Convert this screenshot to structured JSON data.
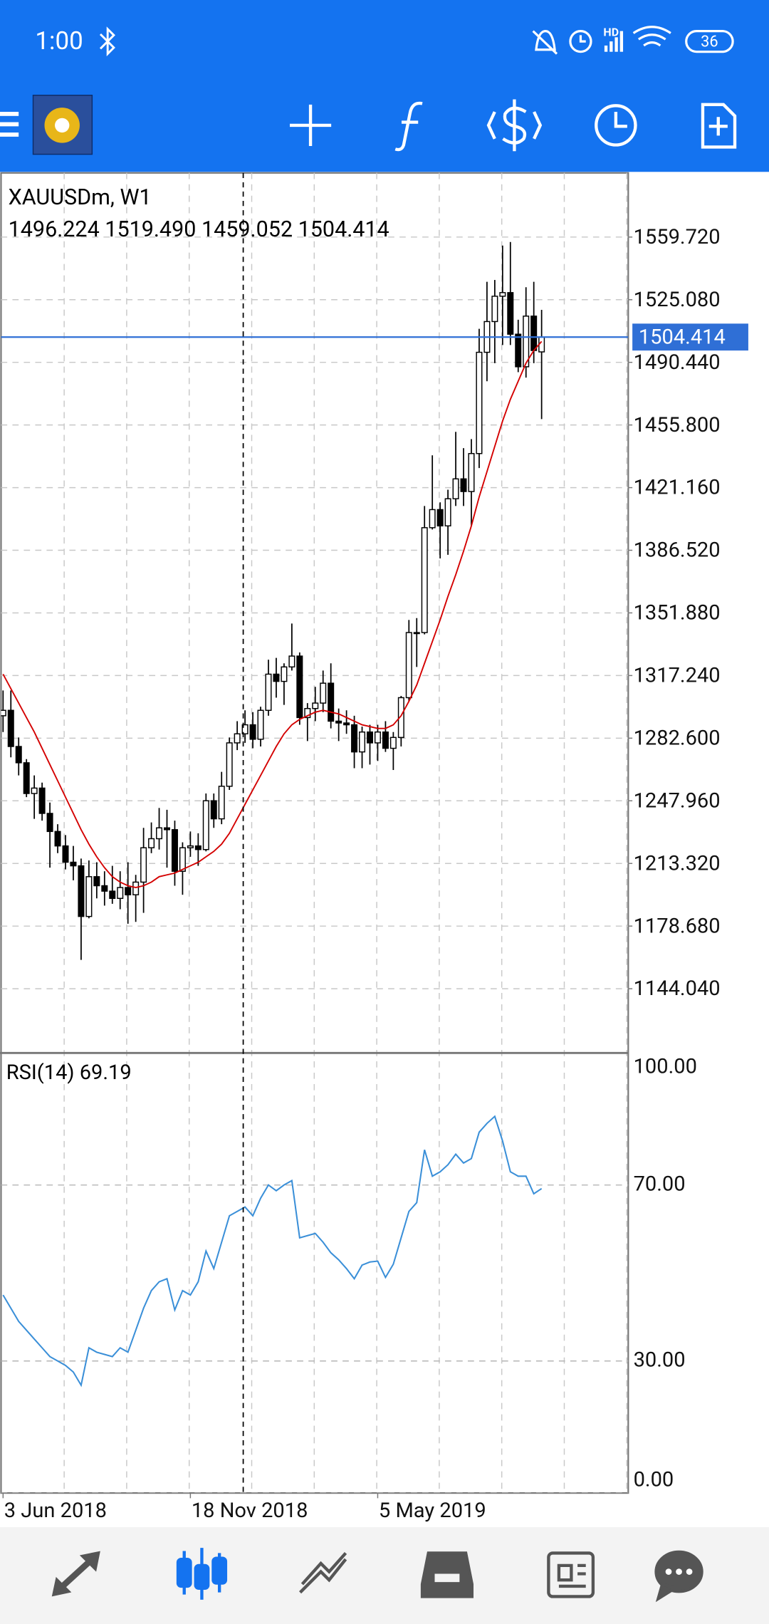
{
  "status_bar": {
    "time": "1:00",
    "network": "HD",
    "battery": "36"
  },
  "chart_data": {
    "type": "candlestick",
    "title": "XAUUSDm, W1",
    "info": "1496.224 1519.490 1459.052 1504.414",
    "open": [
      1295,
      1298,
      1278,
      1269,
      1252,
      1255,
      1241,
      1231,
      1223,
      1214,
      1212,
      1184,
      1206,
      1201,
      1198,
      1194,
      1200,
      1196,
      1203,
      1222,
      1227,
      1233,
      1232,
      1209,
      1222,
      1223,
      1221,
      1248,
      1238,
      1256,
      1280,
      1285,
      1290,
      1282,
      1298,
      1318,
      1314,
      1322,
      1328,
      1294,
      1299,
      1302,
      1313,
      1292,
      1291,
      1290,
      1275,
      1286,
      1280,
      1286,
      1277,
      1283,
      1305,
      1341,
      1341,
      1399,
      1409,
      1400,
      1415,
      1426,
      1419,
      1440,
      1496,
      1513,
      1527,
      1529,
      1506,
      1488,
      1516,
      1496.224
    ],
    "high": [
      1309,
      1309,
      1283,
      1271,
      1262,
      1258,
      1247,
      1235,
      1229,
      1223,
      1216,
      1215,
      1214,
      1209,
      1212,
      1209,
      1214,
      1207,
      1233,
      1236,
      1244,
      1243,
      1237,
      1225,
      1231,
      1230,
      1252,
      1252,
      1264,
      1283,
      1292,
      1298,
      1297,
      1300,
      1326,
      1327,
      1324,
      1346,
      1330,
      1302,
      1311,
      1320,
      1324,
      1299,
      1298,
      1295,
      1289,
      1290,
      1290,
      1292,
      1286,
      1306,
      1348,
      1349,
      1411,
      1439,
      1413,
      1420,
      1452,
      1443,
      1448,
      1509,
      1535,
      1536,
      1555,
      1557,
      1514,
      1532,
      1535,
      1519.49
    ],
    "low": [
      1286,
      1272,
      1262,
      1250,
      1238,
      1237,
      1211,
      1219,
      1210,
      1204,
      1160,
      1183,
      1194,
      1190,
      1191,
      1188,
      1180,
      1181,
      1186,
      1219,
      1221,
      1211,
      1201,
      1196,
      1217,
      1212,
      1220,
      1233,
      1235,
      1254,
      1276,
      1280,
      1277,
      1278,
      1295,
      1305,
      1301,
      1320,
      1290,
      1281,
      1292,
      1297,
      1288,
      1281,
      1285,
      1266,
      1266,
      1268,
      1270,
      1275,
      1265,
      1278,
      1303,
      1322,
      1340,
      1398,
      1382,
      1384,
      1411,
      1411,
      1400,
      1432,
      1480,
      1490,
      1500,
      1500,
      1485,
      1482,
      1490,
      1459.052
    ],
    "close": [
      1298,
      1278,
      1269,
      1252,
      1255,
      1241,
      1231,
      1223,
      1214,
      1212,
      1184,
      1206,
      1201,
      1198,
      1194,
      1200,
      1196,
      1203,
      1222,
      1227,
      1233,
      1232,
      1209,
      1222,
      1223,
      1221,
      1248,
      1238,
      1256,
      1280,
      1285,
      1290,
      1282,
      1298,
      1318,
      1314,
      1322,
      1328,
      1294,
      1299,
      1302,
      1313,
      1292,
      1291,
      1290,
      1275,
      1286,
      1280,
      1286,
      1277,
      1283,
      1305,
      1341,
      1341,
      1399,
      1409,
      1400,
      1415,
      1426,
      1419,
      1440,
      1496,
      1513,
      1527,
      1529,
      1506,
      1488,
      1516,
      1497,
      1504.414
    ],
    "up_color": "#ffffff",
    "down_color": "#000000",
    "ma": {
      "color": "#d40000",
      "values": [
        1318,
        1310,
        1302,
        1294,
        1286,
        1277,
        1268,
        1259,
        1250,
        1241,
        1232,
        1224,
        1217,
        1211,
        1206,
        1203,
        1201,
        1200,
        1201,
        1203,
        1206,
        1207,
        1208,
        1210,
        1212,
        1214,
        1217,
        1220,
        1224,
        1230,
        1238,
        1246,
        1254,
        1262,
        1270,
        1278,
        1285,
        1290,
        1293,
        1295,
        1297,
        1298,
        1297,
        1296,
        1294,
        1292,
        1290,
        1289,
        1288,
        1288,
        1290,
        1295,
        1303,
        1312,
        1324,
        1336,
        1348,
        1361,
        1373,
        1386,
        1400,
        1416,
        1430,
        1444,
        1458,
        1470,
        1480,
        1490,
        1497,
        1502
      ]
    },
    "current_price": {
      "value": 1504.414,
      "label": "1504.414",
      "color": "#2f6fd6"
    },
    "xlim": [
      -0.26,
      80.1
    ],
    "xticks": [
      {
        "value": 0,
        "label": "3 Jun 2018"
      },
      {
        "value": 24,
        "label": "18 Nov 2018"
      },
      {
        "value": 48,
        "label": "5 May 2019"
      }
    ],
    "ylim": [
      1108.5,
      1595.2
    ],
    "yticks": [
      {
        "value": 1559.72,
        "label": "1559.720"
      },
      {
        "value": 1525.08,
        "label": "1525.080"
      },
      {
        "value": 1490.44,
        "label": "1490.440"
      },
      {
        "value": 1455.8,
        "label": "1455.800"
      },
      {
        "value": 1421.16,
        "label": "1421.160"
      },
      {
        "value": 1386.52,
        "label": "1386.520"
      },
      {
        "value": 1351.88,
        "label": "1351.880"
      },
      {
        "value": 1317.24,
        "label": "1317.240"
      },
      {
        "value": 1282.6,
        "label": "1282.600"
      },
      {
        "value": 1247.96,
        "label": "1247.960"
      },
      {
        "value": 1213.32,
        "label": "1213.320"
      },
      {
        "value": 1178.68,
        "label": "1178.680"
      },
      {
        "value": 1144.04,
        "label": "1144.040"
      }
    ],
    "grid": true,
    "rsi": {
      "label": "RSI(14) 69.19",
      "color": "#3a8fd8",
      "values": [
        45,
        42,
        39,
        37,
        35,
        33,
        31,
        30,
        29,
        27.5,
        24.5,
        33,
        32,
        31.5,
        31,
        33,
        32,
        37,
        42,
        46,
        48,
        48.7,
        41.6,
        46,
        45,
        48,
        55,
        51,
        57,
        63,
        64,
        65,
        63,
        67,
        70,
        68.7,
        70,
        71,
        58,
        58.5,
        59,
        57,
        54.6,
        53,
        51,
        48.7,
        51.8,
        52.5,
        52.7,
        49,
        52,
        58,
        64,
        66,
        78,
        72,
        73,
        74.6,
        77,
        75,
        76,
        82,
        84,
        85.6,
        80,
        73,
        72,
        72,
        68,
        69.19
      ],
      "ylim": [
        0,
        100
      ],
      "yticks": [
        {
          "value": 100,
          "label": "100.00"
        },
        {
          "value": 70,
          "label": "70.00"
        },
        {
          "value": 30,
          "label": "30.00"
        },
        {
          "value": 0,
          "label": "0.00"
        }
      ]
    }
  }
}
